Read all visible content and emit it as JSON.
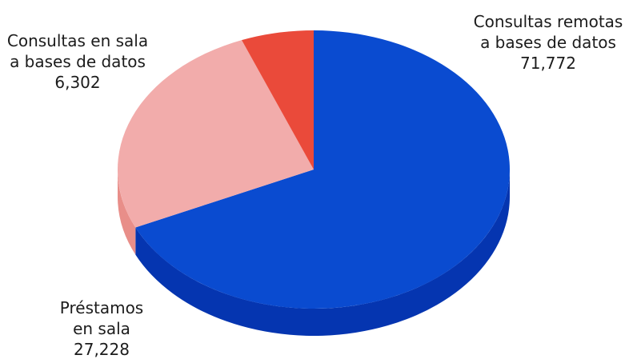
{
  "chart_data": {
    "type": "pie",
    "title": "",
    "slices": [
      {
        "label_lines": [
          "Consultas remotas",
          "a bases de datos"
        ],
        "value_text": "71,772",
        "value": 71772,
        "color": "#0a4bd0",
        "side_color": "#0535b0"
      },
      {
        "label_lines": [
          "Préstamos",
          "en sala"
        ],
        "value_text": "27,228",
        "value": 27228,
        "color": "#f2acab",
        "side_color": "#e88e89"
      },
      {
        "label_lines": [
          "Consultas en sala",
          "a bases de datos"
        ],
        "value_text": "6,302",
        "value": 6302,
        "color": "#ea4a3a",
        "side_color": "#c7352a"
      }
    ],
    "legend": "none"
  }
}
